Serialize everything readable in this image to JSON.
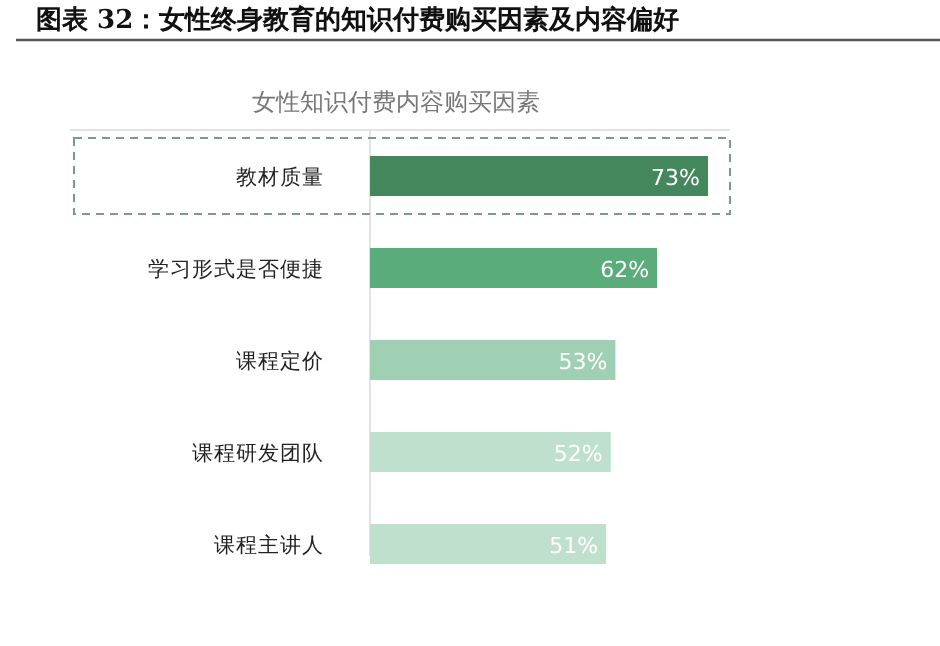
{
  "chart_data": {
    "type": "bar",
    "orientation": "horizontal",
    "title": "图表 32：女性终身教育的知识付费购买因素及内容偏好",
    "subtitle": "女性知识付费内容购买因素",
    "categories": [
      "教材质量",
      "学习形式是否便捷",
      "课程定价",
      "课程研发团队",
      "课程主讲人"
    ],
    "values": [
      73,
      62,
      53,
      52,
      51
    ],
    "colors": [
      "#44875d",
      "#5aac7b",
      "#9fd0b3",
      "#bfe0cd",
      "#bfe0cd"
    ],
    "data_labels": true,
    "value_labels": [
      "73%",
      "62%",
      "53%",
      "52%",
      "51%"
    ]
  }
}
